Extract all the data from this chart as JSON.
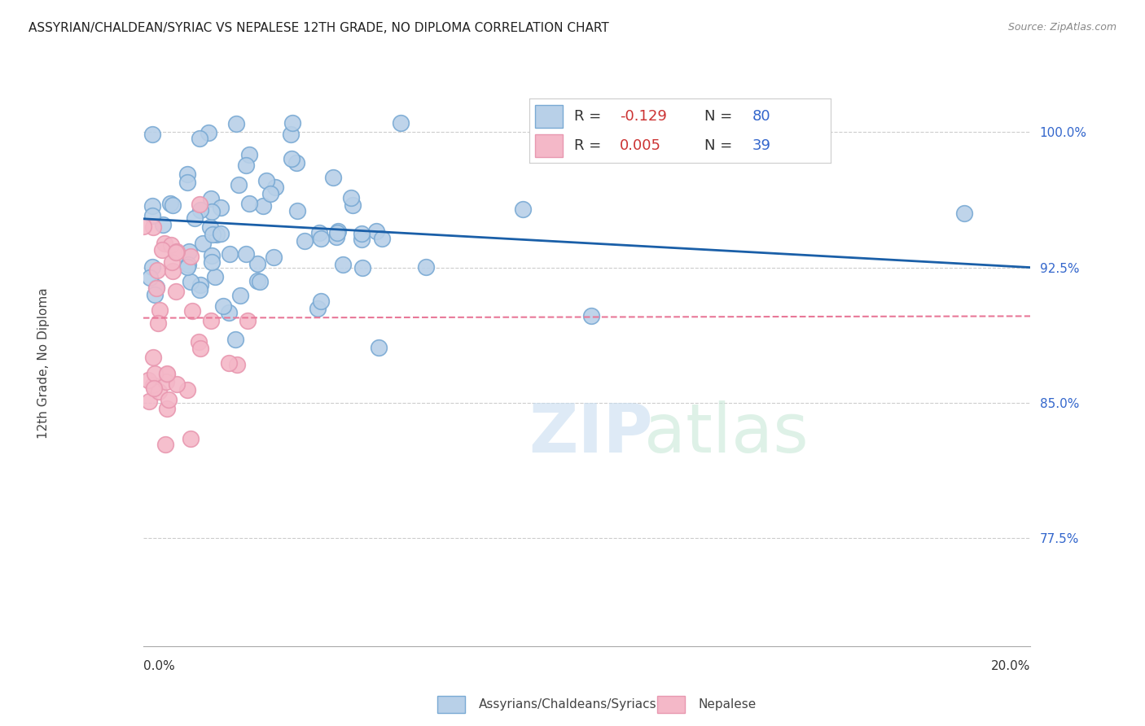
{
  "title": "ASSYRIAN/CHALDEAN/SYRIAC VS NEPALESE 12TH GRADE, NO DIPLOMA CORRELATION CHART",
  "source": "Source: ZipAtlas.com",
  "ylabel": "12th Grade, No Diploma",
  "ytick_labels": [
    "77.5%",
    "85.0%",
    "92.5%",
    "100.0%"
  ],
  "ytick_values": [
    0.775,
    0.85,
    0.925,
    1.0
  ],
  "xmin": 0.0,
  "xmax": 0.2,
  "ymin": 0.715,
  "ymax": 1.025,
  "blue_label": "Assyrians/Chaldeans/Syriacs",
  "pink_label": "Nepalese",
  "blue_R": "-0.129",
  "blue_N": "80",
  "pink_R": "0.005",
  "pink_N": "39",
  "blue_fill": "#b8d0e8",
  "blue_edge": "#7aaad4",
  "pink_fill": "#f4b8c8",
  "pink_edge": "#e898b0",
  "blue_line_color": "#1a5fa8",
  "pink_line_color": "#e87898",
  "legend_R_color": "#cc3333",
  "legend_N_color": "#3366cc",
  "grid_color": "#cccccc",
  "blue_line_y0": 0.952,
  "blue_line_y1": 0.925,
  "pink_line_y0": 0.897,
  "pink_line_y1": 0.898
}
